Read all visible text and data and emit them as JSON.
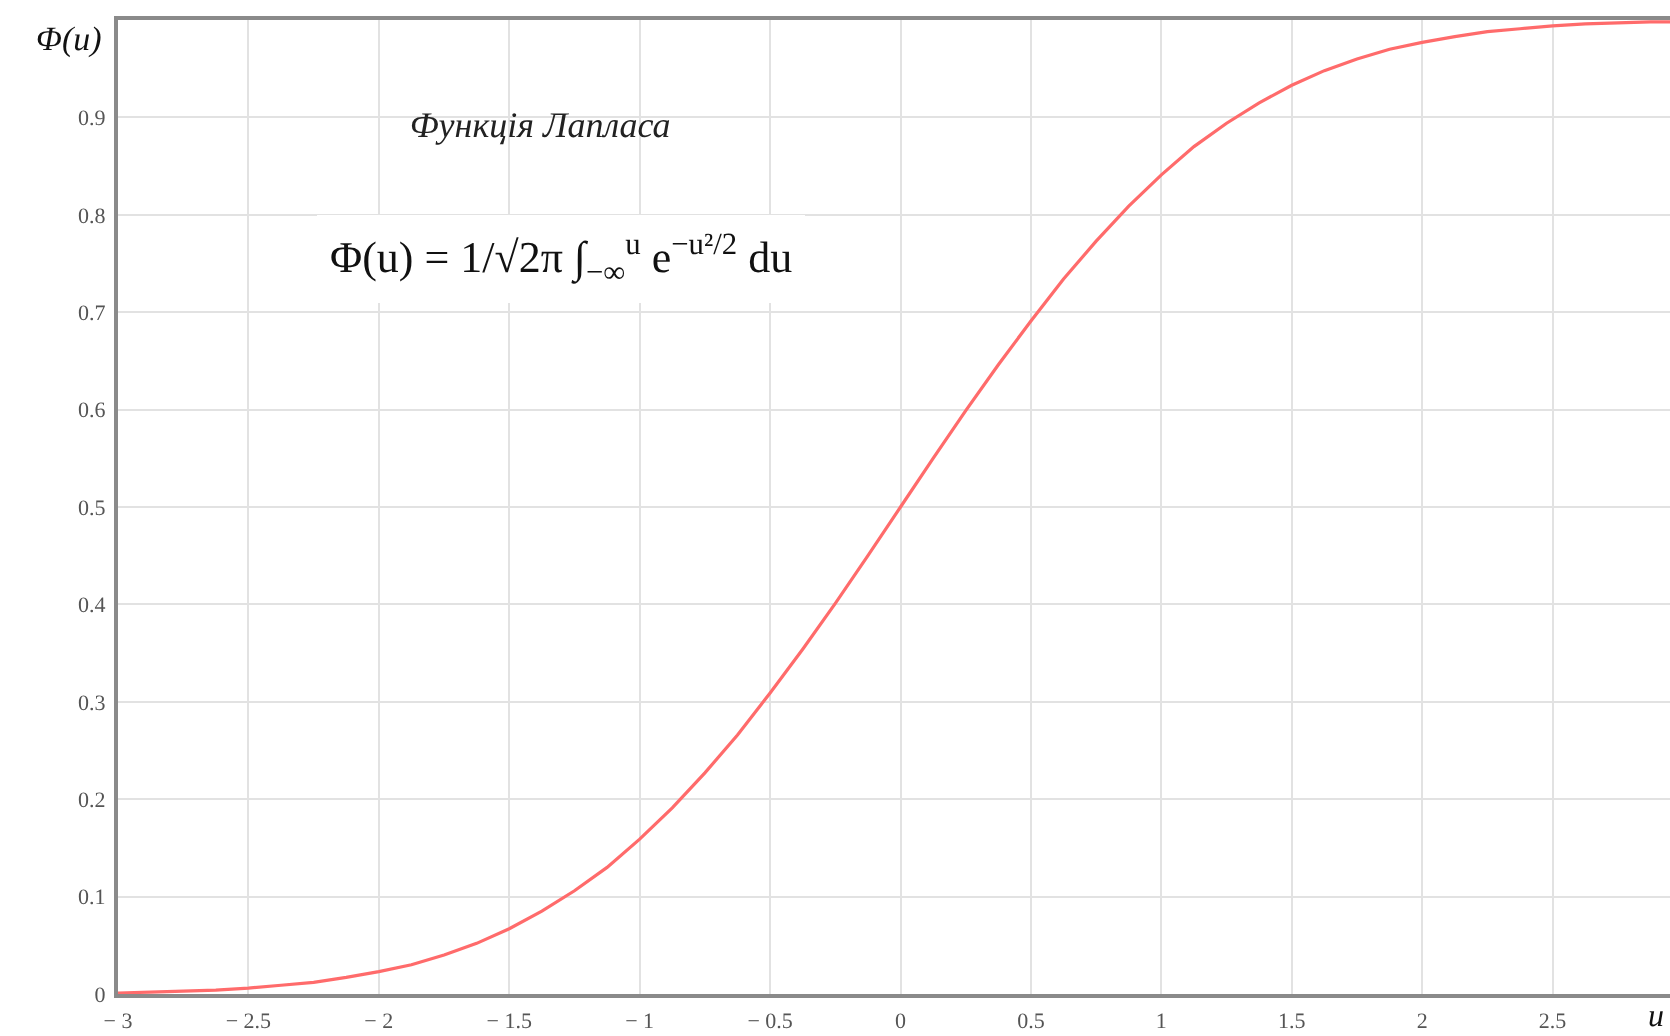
{
  "chart_data": {
    "type": "line",
    "title": "Функція Лапласа",
    "xlabel": "u",
    "ylabel": "Φ(u)",
    "annotations": [
      "Φ(u) = 1/√2π ∫$_{−∞}$$^{u}$ e$^{−u²/2}$ du"
    ],
    "x": [
      -3,
      -2.875,
      -2.75,
      -2.625,
      -2.5,
      -2.375,
      -2.25,
      -2.125,
      -2,
      -1.875,
      -1.75,
      -1.625,
      -1.5,
      -1.375,
      -1.25,
      -1.125,
      -1,
      -0.875,
      -0.75,
      -0.625,
      -0.5,
      -0.375,
      -0.25,
      -0.125,
      0,
      0.125,
      0.25,
      0.375,
      0.5,
      0.625,
      0.75,
      0.875,
      1,
      1.125,
      1.25,
      1.375,
      1.5,
      1.625,
      1.75,
      1.875,
      2,
      2.125,
      2.25,
      2.375,
      2.5,
      2.625,
      2.75,
      2.875,
      2.95
    ],
    "values": [
      0.001,
      0.002,
      0.003,
      0.004,
      0.006,
      0.009,
      0.012,
      0.017,
      0.023,
      0.03,
      0.04,
      0.052,
      0.067,
      0.085,
      0.106,
      0.13,
      0.159,
      0.191,
      0.227,
      0.266,
      0.309,
      0.354,
      0.401,
      0.45,
      0.5,
      0.55,
      0.599,
      0.646,
      0.691,
      0.734,
      0.773,
      0.809,
      0.841,
      0.87,
      0.894,
      0.915,
      0.933,
      0.948,
      0.96,
      0.97,
      0.977,
      0.983,
      0.988,
      0.991,
      0.994,
      0.996,
      0.997,
      0.998,
      0.998
    ],
    "color": "#ff6b6b",
    "xlim": [
      -3,
      2.95
    ],
    "xticks": [
      {
        "value": -3,
        "label": "− 3"
      },
      {
        "value": -2.5,
        "label": "− 2.5"
      },
      {
        "value": -2,
        "label": "− 2"
      },
      {
        "value": -1.5,
        "label": "− 1.5"
      },
      {
        "value": -1,
        "label": "− 1"
      },
      {
        "value": -0.5,
        "label": "− 0.5"
      },
      0,
      0.5,
      1,
      1.5,
      2,
      2.5
    ],
    "ylim": [
      0,
      1
    ],
    "yticks": [
      0,
      0.1,
      0.2,
      0.3,
      0.4,
      0.5,
      0.6,
      0.7,
      0.8,
      0.9
    ],
    "grid": true,
    "legend": false,
    "marker": "none",
    "line_style": "solid"
  }
}
